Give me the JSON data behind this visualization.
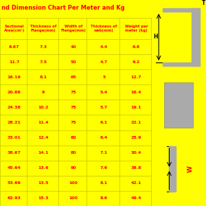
{
  "title_display": "nd Dimension Chart Per Meter and Kg",
  "bg_color": "#FFFF00",
  "text_color": "#FF0000",
  "line_color": "#CCCC00",
  "headers": [
    "Sectional\nArea(cm²)",
    "Thickness of\nFlange(mm)",
    "Width of\nFlange(mm)",
    "Thickness of\nweb(mm)",
    "Weight per\nmeter (kg)"
  ],
  "rows": [
    [
      "8.67",
      "7.3",
      "40",
      "4.4",
      "6.8"
    ],
    [
      "11.7",
      "7.5",
      "50",
      "4.7",
      "9.2"
    ],
    [
      "16.19",
      "8.1",
      "65",
      "5",
      "12.7"
    ],
    [
      "20.88",
      "9",
      "75",
      "5.4",
      "16.4"
    ],
    [
      "24.38",
      "10.2",
      "75",
      "5.7",
      "19.1"
    ],
    [
      "28.21",
      "11.4",
      "75",
      "6.1",
      "22.1"
    ],
    [
      "33.01",
      "12.4",
      "80",
      "6.4",
      "25.9"
    ],
    [
      "38.67",
      "14.1",
      "80",
      "7.1",
      "30.4"
    ],
    [
      "45.64",
      "13.6",
      "90",
      "7.6",
      "38.8"
    ],
    [
      "53.66",
      "13.5",
      "100",
      "8.1",
      "42.1"
    ],
    [
      "62.93",
      "15.3",
      "100",
      "8.6",
      "49.4"
    ]
  ],
  "diag_color": "#AAAAAA",
  "arrow_color": "#000000"
}
